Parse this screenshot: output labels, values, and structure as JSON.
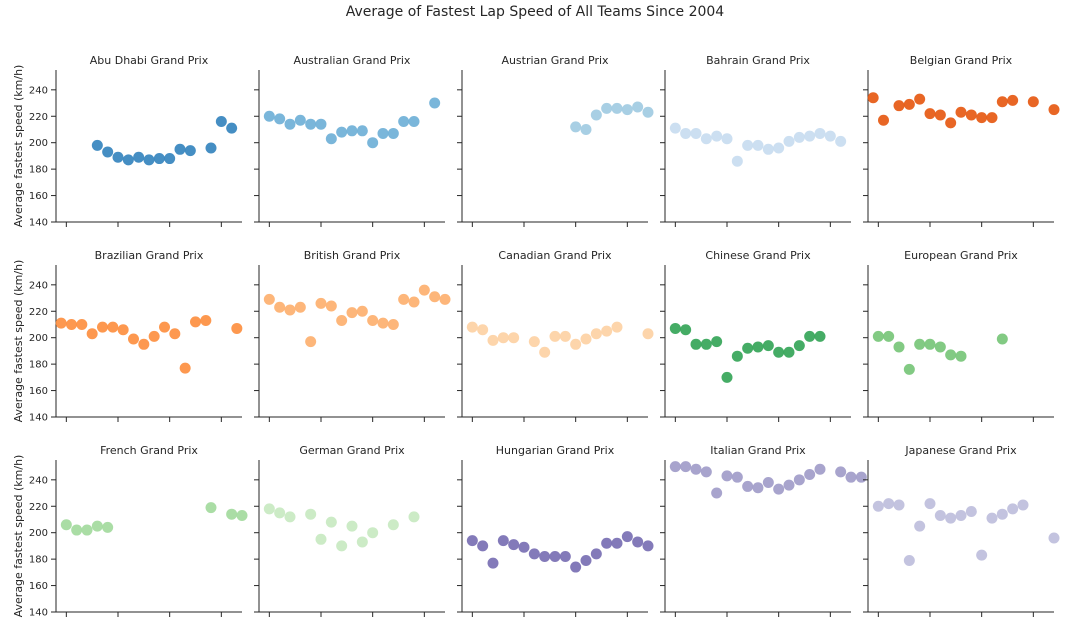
{
  "chart_data": {
    "type": "scatter",
    "title": "Average of Fastest Lap Speed of All Teams Since 2004",
    "ylabel": "Average fastest speed (km/h)",
    "xlabel": "",
    "xlim": [
      2003,
      2021
    ],
    "ylim": [
      140,
      255
    ],
    "yticks": [
      140,
      160,
      180,
      200,
      220,
      240
    ],
    "xticks": [
      2004,
      2009,
      2014,
      2019
    ],
    "grid": false,
    "panels": [
      {
        "name": "Abu Dhabi Grand Prix",
        "color": "#3182bd",
        "points": [
          [
            2007.0,
            198
          ],
          [
            2008.0,
            193
          ],
          [
            2009.0,
            189
          ],
          [
            2010.0,
            187
          ],
          [
            2011.0,
            189
          ],
          [
            2012.0,
            187
          ],
          [
            2013.0,
            188
          ],
          [
            2014.0,
            188
          ],
          [
            2015.0,
            195
          ],
          [
            2016.0,
            194
          ],
          [
            2018.0,
            196
          ],
          [
            2019.0,
            216
          ],
          [
            2020.0,
            211
          ]
        ]
      },
      {
        "name": "Australian Grand Prix",
        "color": "#6baed6",
        "points": [
          [
            2004.0,
            220
          ],
          [
            2005.0,
            218
          ],
          [
            2006.0,
            214
          ],
          [
            2007.0,
            217
          ],
          [
            2008.0,
            214
          ],
          [
            2009.0,
            214
          ],
          [
            2010.0,
            203
          ],
          [
            2011.0,
            208
          ],
          [
            2012.0,
            209
          ],
          [
            2013.0,
            209
          ],
          [
            2014.0,
            200
          ],
          [
            2015.0,
            207
          ],
          [
            2016.0,
            207
          ],
          [
            2017.0,
            216
          ],
          [
            2018.0,
            216
          ],
          [
            2020.0,
            230
          ]
        ]
      },
      {
        "name": "Austrian Grand Prix",
        "color": "#9ecae1",
        "points": [
          [
            2014.0,
            212
          ],
          [
            2015.0,
            210
          ],
          [
            2016.0,
            221
          ],
          [
            2017.0,
            226
          ],
          [
            2018.0,
            226
          ],
          [
            2019.0,
            225
          ],
          [
            2020.0,
            227
          ],
          [
            2021.0,
            223
          ]
        ]
      },
      {
        "name": "Bahrain Grand Prix",
        "color": "#c6dbef",
        "points": [
          [
            2004.0,
            211
          ],
          [
            2005.0,
            207
          ],
          [
            2006.0,
            207
          ],
          [
            2007.0,
            203
          ],
          [
            2008.0,
            205
          ],
          [
            2009.0,
            203
          ],
          [
            2010.0,
            186
          ],
          [
            2011.0,
            198
          ],
          [
            2012.0,
            198
          ],
          [
            2013.0,
            195
          ],
          [
            2014.0,
            196
          ],
          [
            2015.0,
            201
          ],
          [
            2016.0,
            204
          ],
          [
            2017.0,
            205
          ],
          [
            2018.0,
            207
          ],
          [
            2019.0,
            205
          ],
          [
            2020.0,
            201
          ]
        ]
      },
      {
        "name": "Belgian Grand Prix",
        "color": "#e6550d",
        "points": [
          [
            2003.5,
            234
          ],
          [
            2004.5,
            217
          ],
          [
            2006.0,
            228
          ],
          [
            2007.0,
            229
          ],
          [
            2008.0,
            233
          ],
          [
            2009.0,
            222
          ],
          [
            2010.0,
            221
          ],
          [
            2011.0,
            215
          ],
          [
            2012.0,
            223
          ],
          [
            2013.0,
            221
          ],
          [
            2014.0,
            219
          ],
          [
            2015.0,
            219
          ],
          [
            2016.0,
            231
          ],
          [
            2017.0,
            232
          ],
          [
            2019.0,
            231
          ],
          [
            2021.0,
            225
          ]
        ]
      },
      {
        "name": "Brazilian Grand Prix",
        "color": "#fd8d3c",
        "points": [
          [
            2003.5,
            211
          ],
          [
            2004.5,
            210
          ],
          [
            2005.5,
            210
          ],
          [
            2006.5,
            203
          ],
          [
            2007.5,
            208
          ],
          [
            2008.5,
            208
          ],
          [
            2009.5,
            206
          ],
          [
            2010.5,
            199
          ],
          [
            2011.5,
            195
          ],
          [
            2012.5,
            201
          ],
          [
            2013.5,
            208
          ],
          [
            2014.5,
            203
          ],
          [
            2015.5,
            177
          ],
          [
            2016.5,
            212
          ],
          [
            2017.5,
            213
          ],
          [
            2020.5,
            207
          ]
        ]
      },
      {
        "name": "British Grand Prix",
        "color": "#fdae6b",
        "points": [
          [
            2004.0,
            229
          ],
          [
            2005.0,
            223
          ],
          [
            2006.0,
            221
          ],
          [
            2007.0,
            223
          ],
          [
            2008.0,
            197
          ],
          [
            2009.0,
            226
          ],
          [
            2010.0,
            224
          ],
          [
            2011.0,
            213
          ],
          [
            2012.0,
            219
          ],
          [
            2013.0,
            220
          ],
          [
            2014.0,
            213
          ],
          [
            2015.0,
            211
          ],
          [
            2016.0,
            210
          ],
          [
            2017.0,
            229
          ],
          [
            2018.0,
            227
          ],
          [
            2019.0,
            236
          ],
          [
            2020.0,
            231
          ],
          [
            2021.0,
            229
          ]
        ]
      },
      {
        "name": "Canadian Grand Prix",
        "color": "#fdd0a2",
        "points": [
          [
            2004.0,
            208
          ],
          [
            2005.0,
            206
          ],
          [
            2006.0,
            198
          ],
          [
            2007.0,
            200
          ],
          [
            2008.0,
            200
          ],
          [
            2010.0,
            197
          ],
          [
            2011.0,
            189
          ],
          [
            2012.0,
            201
          ],
          [
            2013.0,
            201
          ],
          [
            2014.0,
            195
          ],
          [
            2015.0,
            199
          ],
          [
            2016.0,
            203
          ],
          [
            2017.0,
            205
          ],
          [
            2018.0,
            208
          ],
          [
            2021.0,
            203
          ]
        ]
      },
      {
        "name": "Chinese Grand Prix",
        "color": "#31a354",
        "points": [
          [
            2004.0,
            207
          ],
          [
            2005.0,
            206
          ],
          [
            2006.0,
            195
          ],
          [
            2007.0,
            195
          ],
          [
            2008.0,
            197
          ],
          [
            2009.0,
            170
          ],
          [
            2010.0,
            186
          ],
          [
            2011.0,
            192
          ],
          [
            2012.0,
            193
          ],
          [
            2013.0,
            194
          ],
          [
            2014.0,
            189
          ],
          [
            2015.0,
            189
          ],
          [
            2016.0,
            194
          ],
          [
            2017.0,
            201
          ],
          [
            2018.0,
            201
          ]
        ]
      },
      {
        "name": "European Grand Prix",
        "color": "#74c476",
        "points": [
          [
            2004.0,
            201
          ],
          [
            2005.0,
            201
          ],
          [
            2006.0,
            193
          ],
          [
            2007.0,
            176
          ],
          [
            2008.0,
            195
          ],
          [
            2009.0,
            195
          ],
          [
            2010.0,
            193
          ],
          [
            2011.0,
            187
          ],
          [
            2012.0,
            186
          ],
          [
            2016.0,
            199
          ]
        ]
      },
      {
        "name": "French Grand Prix",
        "color": "#a1d99b",
        "points": [
          [
            2004.0,
            206
          ],
          [
            2005.0,
            202
          ],
          [
            2006.0,
            202
          ],
          [
            2007.0,
            205
          ],
          [
            2008.0,
            204
          ],
          [
            2018.0,
            219
          ],
          [
            2020.0,
            214
          ],
          [
            2021.0,
            213
          ]
        ]
      },
      {
        "name": "German Grand Prix",
        "color": "#c7e9c0",
        "points": [
          [
            2004.0,
            218
          ],
          [
            2005.0,
            215
          ],
          [
            2006.0,
            212
          ],
          [
            2008.0,
            214
          ],
          [
            2009.0,
            195
          ],
          [
            2010.0,
            208
          ],
          [
            2011.0,
            190
          ],
          [
            2012.0,
            205
          ],
          [
            2013.0,
            193
          ],
          [
            2014.0,
            200
          ],
          [
            2016.0,
            206
          ],
          [
            2018.0,
            212
          ]
        ]
      },
      {
        "name": "Hungarian Grand Prix",
        "color": "#756bb1",
        "points": [
          [
            2004.0,
            194
          ],
          [
            2005.0,
            190
          ],
          [
            2006.0,
            177
          ],
          [
            2007.0,
            194
          ],
          [
            2008.0,
            191
          ],
          [
            2009.0,
            189
          ],
          [
            2010.0,
            184
          ],
          [
            2011.0,
            182
          ],
          [
            2012.0,
            182
          ],
          [
            2013.0,
            182
          ],
          [
            2014.0,
            174
          ],
          [
            2015.0,
            179
          ],
          [
            2016.0,
            184
          ],
          [
            2017.0,
            192
          ],
          [
            2018.0,
            192
          ],
          [
            2019.0,
            197
          ],
          [
            2020.0,
            193
          ],
          [
            2021.0,
            190
          ]
        ]
      },
      {
        "name": "Italian Grand Prix",
        "color": "#9e9ac8",
        "points": [
          [
            2004.0,
            250
          ],
          [
            2005.0,
            250
          ],
          [
            2006.0,
            248
          ],
          [
            2007.0,
            246
          ],
          [
            2008.0,
            230
          ],
          [
            2009.0,
            243
          ],
          [
            2010.0,
            242
          ],
          [
            2011.0,
            235
          ],
          [
            2012.0,
            234
          ],
          [
            2013.0,
            238
          ],
          [
            2014.0,
            233
          ],
          [
            2015.0,
            236
          ],
          [
            2016.0,
            240
          ],
          [
            2017.0,
            244
          ],
          [
            2018.0,
            248
          ],
          [
            2020.0,
            246
          ],
          [
            2021.0,
            242
          ],
          [
            2022.0,
            242
          ]
        ]
      },
      {
        "name": "Japanese Grand Prix",
        "color": "#bcbddc",
        "points": [
          [
            2004.0,
            220
          ],
          [
            2005.0,
            222
          ],
          [
            2006.0,
            221
          ],
          [
            2007.0,
            179
          ],
          [
            2008.0,
            205
          ],
          [
            2009.0,
            222
          ],
          [
            2010.0,
            213
          ],
          [
            2011.0,
            211
          ],
          [
            2012.0,
            213
          ],
          [
            2013.0,
            216
          ],
          [
            2014.0,
            183
          ],
          [
            2015.0,
            211
          ],
          [
            2016.0,
            214
          ],
          [
            2017.0,
            218
          ],
          [
            2018.0,
            221
          ],
          [
            2021.0,
            196
          ]
        ]
      }
    ]
  }
}
